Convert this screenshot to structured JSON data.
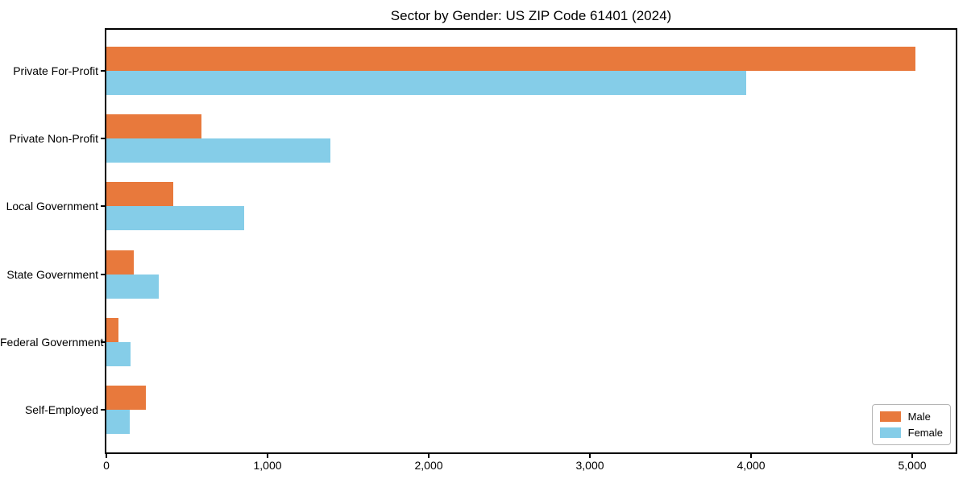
{
  "title": "Sector by Gender: US ZIP Code 61401 (2024)",
  "colors": {
    "male": "#e8793c",
    "female": "#85cde8",
    "axis": "#000000",
    "legend_border": "#b5b5b5",
    "background": "#ffffff"
  },
  "chart_data": {
    "type": "bar",
    "orientation": "horizontal",
    "title": "Sector by Gender: US ZIP Code 61401 (2024)",
    "categories": [
      "Private For-Profit",
      "Private Non-Profit",
      "Local Government",
      "State Government",
      "Federal Government",
      "Self-Employed"
    ],
    "series": [
      {
        "name": "Male",
        "color": "#e8793c",
        "values": [
          5020,
          590,
          415,
          170,
          75,
          245
        ]
      },
      {
        "name": "Female",
        "color": "#85cde8",
        "values": [
          3970,
          1390,
          855,
          325,
          150,
          145
        ]
      }
    ],
    "xlabel": "",
    "ylabel": "",
    "xlim": [
      0,
      5270
    ],
    "x_ticks": [
      0,
      1000,
      2000,
      3000,
      4000,
      5000
    ],
    "x_tick_labels": [
      "0",
      "1,000",
      "2,000",
      "3,000",
      "4,000",
      "5,000"
    ],
    "legend_position": "lower right",
    "grid": false
  }
}
